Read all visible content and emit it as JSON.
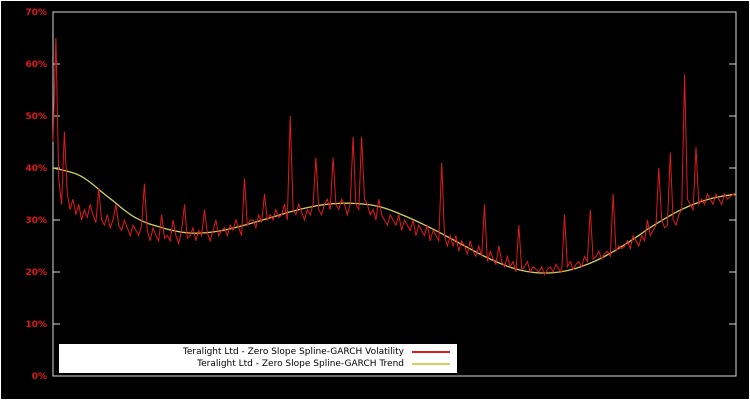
{
  "chart_data": {
    "type": "line",
    "title": "",
    "xlabel": "",
    "ylabel": "",
    "ylim": [
      0,
      0.7
    ],
    "grid": false,
    "legend_position": "bottom-center-inside",
    "background_color": "#000000",
    "frame_color": "#d8d8d8",
    "tick_label_color": "#e01a1a",
    "yticks": [
      {
        "value": 0.0,
        "label": "0%"
      },
      {
        "value": 0.1,
        "label": "10%"
      },
      {
        "value": 0.2,
        "label": "20%"
      },
      {
        "value": 0.3,
        "label": "30%"
      },
      {
        "value": 0.4,
        "label": "40%"
      },
      {
        "value": 0.5,
        "label": "50%"
      },
      {
        "value": 0.6,
        "label": "60%"
      },
      {
        "value": 0.7,
        "label": "70%"
      }
    ],
    "series": [
      {
        "name": "Teralight Ltd - Zero Slope Spline-GARCH Volatility",
        "color": "#e01a1a",
        "style": "raw",
        "values": [
          0.45,
          0.65,
          0.38,
          0.33,
          0.47,
          0.35,
          0.32,
          0.34,
          0.31,
          0.33,
          0.3,
          0.32,
          0.305,
          0.33,
          0.31,
          0.295,
          0.36,
          0.3,
          0.29,
          0.31,
          0.285,
          0.3,
          0.33,
          0.29,
          0.28,
          0.3,
          0.285,
          0.27,
          0.29,
          0.28,
          0.27,
          0.29,
          0.37,
          0.28,
          0.26,
          0.285,
          0.27,
          0.26,
          0.31,
          0.265,
          0.27,
          0.26,
          0.3,
          0.27,
          0.255,
          0.28,
          0.33,
          0.265,
          0.27,
          0.285,
          0.26,
          0.28,
          0.27,
          0.32,
          0.275,
          0.26,
          0.28,
          0.3,
          0.27,
          0.28,
          0.285,
          0.27,
          0.29,
          0.28,
          0.3,
          0.285,
          0.27,
          0.38,
          0.29,
          0.3,
          0.3,
          0.285,
          0.31,
          0.295,
          0.35,
          0.3,
          0.31,
          0.3,
          0.32,
          0.305,
          0.31,
          0.33,
          0.3,
          0.5,
          0.32,
          0.31,
          0.33,
          0.315,
          0.3,
          0.32,
          0.31,
          0.33,
          0.42,
          0.32,
          0.31,
          0.33,
          0.34,
          0.32,
          0.42,
          0.33,
          0.32,
          0.34,
          0.33,
          0.31,
          0.33,
          0.46,
          0.33,
          0.32,
          0.46,
          0.34,
          0.33,
          0.31,
          0.32,
          0.3,
          0.34,
          0.31,
          0.3,
          0.29,
          0.31,
          0.3,
          0.29,
          0.31,
          0.28,
          0.3,
          0.29,
          0.28,
          0.3,
          0.27,
          0.29,
          0.28,
          0.27,
          0.29,
          0.26,
          0.28,
          0.27,
          0.26,
          0.41,
          0.27,
          0.25,
          0.27,
          0.25,
          0.27,
          0.24,
          0.26,
          0.25,
          0.235,
          0.26,
          0.24,
          0.23,
          0.25,
          0.23,
          0.33,
          0.22,
          0.24,
          0.225,
          0.215,
          0.25,
          0.22,
          0.21,
          0.23,
          0.21,
          0.22,
          0.2,
          0.29,
          0.205,
          0.21,
          0.22,
          0.2,
          0.21,
          0.205,
          0.2,
          0.21,
          0.195,
          0.205,
          0.21,
          0.2,
          0.215,
          0.205,
          0.2,
          0.31,
          0.21,
          0.22,
          0.205,
          0.215,
          0.22,
          0.21,
          0.23,
          0.22,
          0.32,
          0.225,
          0.23,
          0.24,
          0.225,
          0.235,
          0.24,
          0.23,
          0.35,
          0.24,
          0.25,
          0.245,
          0.25,
          0.26,
          0.245,
          0.27,
          0.26,
          0.25,
          0.27,
          0.26,
          0.3,
          0.27,
          0.28,
          0.29,
          0.4,
          0.3,
          0.285,
          0.29,
          0.43,
          0.3,
          0.29,
          0.31,
          0.32,
          0.58,
          0.34,
          0.33,
          0.32,
          0.44,
          0.33,
          0.34,
          0.33,
          0.35,
          0.34,
          0.33,
          0.35,
          0.34,
          0.33,
          0.35,
          0.34,
          0.345,
          0.35,
          0.345
        ]
      },
      {
        "name": "Teralight Ltd - Zero Slope Spline-GARCH Trend",
        "color": "#cfd05f",
        "style": "smooth",
        "points": [
          [
            0.0,
            0.4
          ],
          [
            0.04,
            0.385
          ],
          [
            0.08,
            0.345
          ],
          [
            0.12,
            0.305
          ],
          [
            0.16,
            0.285
          ],
          [
            0.2,
            0.275
          ],
          [
            0.24,
            0.278
          ],
          [
            0.28,
            0.29
          ],
          [
            0.32,
            0.305
          ],
          [
            0.36,
            0.32
          ],
          [
            0.4,
            0.33
          ],
          [
            0.44,
            0.332
          ],
          [
            0.48,
            0.325
          ],
          [
            0.52,
            0.305
          ],
          [
            0.56,
            0.28
          ],
          [
            0.6,
            0.252
          ],
          [
            0.64,
            0.225
          ],
          [
            0.68,
            0.205
          ],
          [
            0.72,
            0.198
          ],
          [
            0.76,
            0.205
          ],
          [
            0.8,
            0.225
          ],
          [
            0.84,
            0.255
          ],
          [
            0.88,
            0.29
          ],
          [
            0.92,
            0.32
          ],
          [
            0.96,
            0.34
          ],
          [
            1.0,
            0.35
          ]
        ]
      }
    ]
  }
}
